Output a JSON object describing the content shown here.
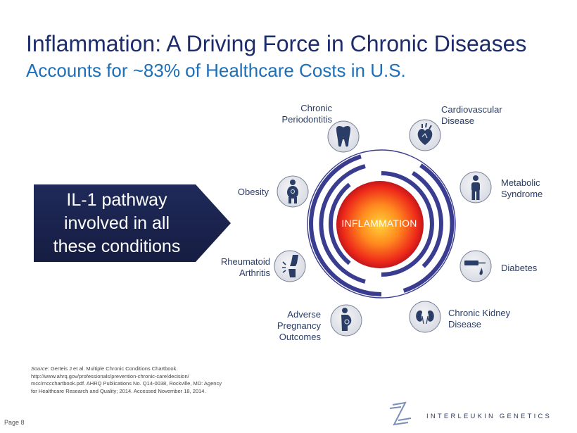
{
  "title": "Inflammation: A Driving Force in Chronic Diseases",
  "subtitle": "Accounts for ~83% of Healthcare Costs in U.S.",
  "callout": {
    "lines": [
      "IL-1 pathway",
      "involved in all",
      "these conditions"
    ]
  },
  "center_label": "INFLAMMATION",
  "conditions": {
    "periodontitis": [
      "Chronic",
      "Periodontitis"
    ],
    "cardiovascular": [
      "Cardiovascular",
      "Disease"
    ],
    "obesity": [
      "Obesity"
    ],
    "metabolic": [
      "Metabolic",
      "Syndrome"
    ],
    "rheumatoid": [
      "Rheumatoid",
      "Arthritis"
    ],
    "diabetes": [
      "Diabetes"
    ],
    "pregnancy": [
      "Adverse",
      "Pregnancy",
      "Outcomes"
    ],
    "kidney": [
      "Chronic Kidney",
      "Disease"
    ]
  },
  "icons": {
    "periodontitis": "tooth-icon",
    "cardiovascular": "heart-icon",
    "obesity": "obese-person-icon",
    "metabolic": "person-icon",
    "rheumatoid": "knee-joint-icon",
    "diabetes": "insulin-injection-icon",
    "pregnancy": "pregnant-woman-icon",
    "kidney": "kidneys-icon"
  },
  "source": {
    "prefix": "Source:",
    "lines": [
      " Gerteis J et al. Multiple Chronic Conditions Chartbook.",
      "http://www.ahrq.gov/professionals/prevention-chronic-care/decision/",
      "mcc/mccchartbook.pdf. AHRQ Publications No. Q14-0038, Rockville, MD: Agency",
      "for Healthcare Research and  Quality; 2014. Accessed November 18, 2014."
    ]
  },
  "page": "Page 8",
  "brand": "INTERLEUKIN GENETICS",
  "colors": {
    "navy": "#1d2c6b",
    "blue": "#1f6fb8",
    "ring": "#3a3d8f",
    "callout_bg": "#1c2550",
    "icon_bg": "#e6e8ee",
    "icon_fill": "#2a3d66",
    "sphere_center": "#ffd23a",
    "sphere_edge": "#e01b1b"
  }
}
